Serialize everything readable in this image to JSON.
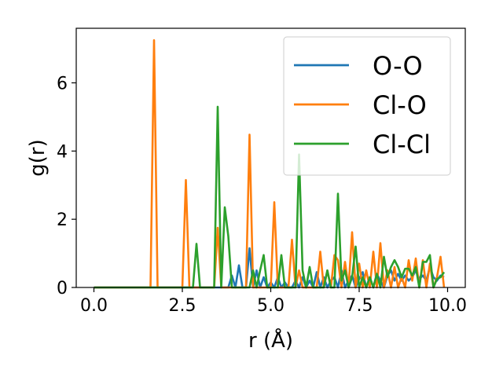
{
  "chart_data": {
    "type": "line",
    "title": "",
    "xlabel": "r (Å)",
    "ylabel": "g(r)",
    "xlim": [
      -0.5,
      10.5
    ],
    "ylim": [
      0,
      7.6
    ],
    "xticks": [
      0,
      2.5,
      5,
      7.5,
      10
    ],
    "xtick_labels": [
      "0.0",
      "2.5",
      "5.0",
      "7.5",
      "10.0"
    ],
    "yticks": [
      0,
      2,
      4,
      6
    ],
    "ytick_labels": [
      "0",
      "2",
      "4",
      "6"
    ],
    "grid": false,
    "legend": "upper-right",
    "series": [
      {
        "name": "O-O",
        "color": "#1f77b4",
        "x": [
          0.0,
          3.8,
          3.9,
          4.0,
          4.1,
          4.2,
          4.3,
          4.4,
          4.5,
          4.6,
          4.7,
          4.8,
          4.9,
          5.0,
          5.1,
          5.2,
          5.3,
          5.4,
          5.5,
          5.6,
          5.7,
          5.8,
          5.9,
          6.0,
          6.1,
          6.2,
          6.3,
          6.4,
          6.5,
          6.6,
          6.7,
          6.8,
          6.9,
          7.0,
          7.1,
          7.2,
          7.3,
          7.4,
          7.5,
          7.6,
          7.7,
          7.8,
          7.9,
          8.0,
          8.1,
          8.2,
          8.3,
          8.4,
          8.5,
          8.6,
          8.7,
          8.8,
          8.9,
          9.0,
          9.1,
          9.2,
          9.3,
          9.4,
          9.5,
          9.6,
          9.7,
          9.8,
          9.9
        ],
        "y": [
          0.0,
          0.0,
          0.35,
          0.0,
          0.65,
          0.0,
          0.0,
          1.15,
          0.0,
          0.5,
          0.0,
          0.3,
          0.0,
          0.15,
          0.0,
          0.3,
          0.0,
          0.15,
          0.0,
          0.0,
          0.2,
          0.0,
          0.3,
          0.0,
          0.2,
          0.0,
          0.45,
          0.0,
          0.3,
          0.0,
          0.2,
          0.3,
          0.0,
          0.5,
          0.0,
          0.2,
          0.35,
          0.0,
          0.25,
          0.45,
          0.0,
          0.3,
          0.0,
          0.4,
          0.2,
          0.0,
          0.35,
          0.5,
          0.2,
          0.4,
          0.2,
          0.35,
          0.2,
          0.3,
          0.5,
          0.25,
          0.35,
          0.2,
          0.6,
          0.3,
          0.2,
          0.35,
          0.3
        ]
      },
      {
        "name": "Cl-O",
        "color": "#ff7f0e",
        "x": [
          0.0,
          1.6,
          1.7,
          1.8,
          2.5,
          2.6,
          2.7,
          3.4,
          3.5,
          3.6,
          4.3,
          4.4,
          4.5,
          5.0,
          5.1,
          5.2,
          5.5,
          5.6,
          5.7,
          5.8,
          5.9,
          6.3,
          6.4,
          6.5,
          6.6,
          6.7,
          6.8,
          6.9,
          7.0,
          7.1,
          7.2,
          7.3,
          7.4,
          7.5,
          7.6,
          7.7,
          7.8,
          7.9,
          8.0,
          8.1,
          8.2,
          8.3,
          8.4,
          8.5,
          8.6,
          8.7,
          8.8,
          8.9,
          9.0,
          9.1,
          9.2,
          9.3,
          9.4,
          9.5,
          9.6,
          9.7,
          9.8,
          9.9
        ],
        "y": [
          0.0,
          0.0,
          7.25,
          0.0,
          0.0,
          3.15,
          0.0,
          0.0,
          1.75,
          0.0,
          0.0,
          4.48,
          0.0,
          0.0,
          2.5,
          0.0,
          0.0,
          1.4,
          0.0,
          0.5,
          0.0,
          0.0,
          1.05,
          0.0,
          0.5,
          0.0,
          0.95,
          0.8,
          0.0,
          0.75,
          0.0,
          1.62,
          0.0,
          0.7,
          0.0,
          0.5,
          0.0,
          1.05,
          0.0,
          1.3,
          0.0,
          0.5,
          0.0,
          0.6,
          0.0,
          0.3,
          0.0,
          0.8,
          0.2,
          0.85,
          0.0,
          0.8,
          0.0,
          0.7,
          0.0,
          0.3,
          0.9,
          0.0
        ]
      },
      {
        "name": "Cl-Cl",
        "color": "#2ca02c",
        "x": [
          0.0,
          2.8,
          2.9,
          3.0,
          3.4,
          3.5,
          3.6,
          3.7,
          3.8,
          3.9,
          4.0,
          4.4,
          4.5,
          4.6,
          4.7,
          4.8,
          4.9,
          5.2,
          5.3,
          5.4,
          5.7,
          5.8,
          5.9,
          6.0,
          6.1,
          6.2,
          6.5,
          6.6,
          6.7,
          6.8,
          6.9,
          7.0,
          7.1,
          7.2,
          7.3,
          7.4,
          7.5,
          7.6,
          7.7,
          7.8,
          7.9,
          8.0,
          8.1,
          8.2,
          8.3,
          8.4,
          8.5,
          8.6,
          8.7,
          8.8,
          8.9,
          9.0,
          9.1,
          9.2,
          9.3,
          9.4,
          9.5,
          9.6,
          9.7,
          9.8,
          9.9
        ],
        "y": [
          0.0,
          0.0,
          1.28,
          0.0,
          0.0,
          5.3,
          0.0,
          2.35,
          1.5,
          0.0,
          0.0,
          0.0,
          0.5,
          0.0,
          0.5,
          0.95,
          0.0,
          0.0,
          0.95,
          0.0,
          0.0,
          3.9,
          0.5,
          0.0,
          0.6,
          0.0,
          0.0,
          0.5,
          0.0,
          0.0,
          2.75,
          0.2,
          0.5,
          0.0,
          0.3,
          1.2,
          0.0,
          0.3,
          0.0,
          0.3,
          0.0,
          0.4,
          0.0,
          0.9,
          0.3,
          0.6,
          0.8,
          0.6,
          0.3,
          0.55,
          0.55,
          0.35,
          0.6,
          0.0,
          0.75,
          0.75,
          0.95,
          0.0,
          0.25,
          0.3,
          0.45
        ]
      }
    ]
  }
}
